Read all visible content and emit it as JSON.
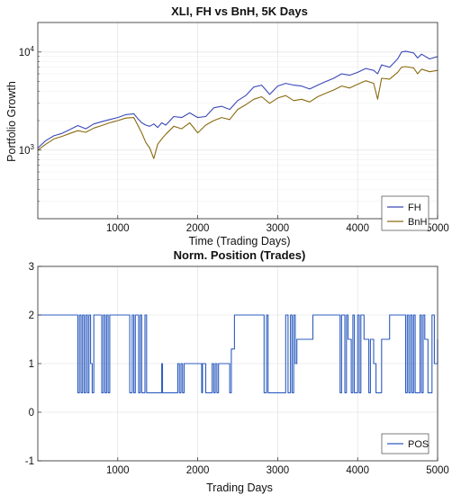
{
  "chart_data": [
    {
      "type": "line",
      "title": "XLI, FH vs BnH, 5K Days",
      "xlabel": "Time (Trading Days)",
      "ylabel": "Portfolio Growth",
      "yscale": "log",
      "xlim": [
        0,
        5000
      ],
      "ylim": [
        200,
        20000
      ],
      "xticks": [
        1000,
        2000,
        3000,
        4000,
        5000
      ],
      "xtick_labels": [
        "1000",
        "2000",
        "3000",
        "4000",
        "5000"
      ],
      "yticks": [
        1000,
        10000
      ],
      "ytick_labels": [
        {
          "base": "10",
          "exp": "3"
        },
        {
          "base": "10",
          "exp": "4"
        }
      ],
      "grid": true,
      "legend": "bottom-right",
      "colors": {
        "FH": "#3a48b8",
        "BnH": "#8a6a10"
      },
      "series": [
        {
          "name": "FH",
          "x": [
            0,
            100,
            200,
            300,
            400,
            500,
            600,
            700,
            800,
            900,
            1000,
            1100,
            1200,
            1250,
            1300,
            1350,
            1400,
            1450,
            1500,
            1550,
            1600,
            1700,
            1800,
            1900,
            2000,
            2100,
            2200,
            2300,
            2400,
            2500,
            2600,
            2700,
            2800,
            2900,
            3000,
            3100,
            3200,
            3300,
            3400,
            3500,
            3600,
            3700,
            3800,
            3900,
            4000,
            4100,
            4200,
            4250,
            4300,
            4400,
            4500,
            4550,
            4600,
            4700,
            4750,
            4800,
            4900,
            5000
          ],
          "y": [
            1050,
            1250,
            1400,
            1480,
            1620,
            1780,
            1650,
            1850,
            1950,
            2050,
            2150,
            2300,
            2350,
            2100,
            1900,
            1800,
            1750,
            1850,
            1700,
            1900,
            1800,
            2200,
            2150,
            2400,
            2150,
            2200,
            2700,
            2800,
            2600,
            3200,
            3600,
            4400,
            4600,
            3700,
            4500,
            4800,
            4600,
            4500,
            4200,
            4600,
            5000,
            5400,
            6000,
            5800,
            6200,
            6800,
            6500,
            6000,
            7400,
            7000,
            8500,
            10000,
            10200,
            9800,
            8700,
            9500,
            8500,
            9000
          ]
        },
        {
          "name": "BnH",
          "x": [
            0,
            100,
            200,
            300,
            400,
            500,
            600,
            700,
            800,
            900,
            1000,
            1100,
            1200,
            1250,
            1300,
            1350,
            1400,
            1450,
            1500,
            1550,
            1600,
            1700,
            1800,
            1900,
            2000,
            2100,
            2200,
            2300,
            2400,
            2500,
            2600,
            2700,
            2800,
            2900,
            3000,
            3100,
            3200,
            3300,
            3400,
            3500,
            3600,
            3700,
            3800,
            3900,
            4000,
            4100,
            4200,
            4250,
            4300,
            4400,
            4500,
            4550,
            4600,
            4700,
            4750,
            4800,
            4900,
            5000
          ],
          "y": [
            1000,
            1150,
            1300,
            1380,
            1480,
            1580,
            1520,
            1680,
            1780,
            1900,
            2000,
            2120,
            2150,
            1800,
            1500,
            1200,
            1050,
            820,
            1150,
            1300,
            1450,
            1750,
            1650,
            1900,
            1500,
            1800,
            2000,
            2150,
            2050,
            2600,
            2900,
            3300,
            3500,
            3000,
            3400,
            3600,
            3200,
            3300,
            3100,
            3500,
            3800,
            4100,
            4500,
            4300,
            4700,
            5100,
            4800,
            3300,
            5400,
            5300,
            6200,
            7000,
            7100,
            6900,
            6000,
            6700,
            6300,
            6500
          ]
        }
      ]
    },
    {
      "type": "line",
      "title": "Norm. Position (Trades)",
      "xlabel": "Trading Days",
      "xlim": [
        0,
        5000
      ],
      "ylim": [
        -1,
        3
      ],
      "xticks": [
        1000,
        2000,
        3000,
        4000,
        5000
      ],
      "xtick_labels": [
        "1000",
        "2000",
        "3000",
        "4000",
        "5000"
      ],
      "yticks": [
        -1,
        0,
        1,
        2,
        3
      ],
      "ytick_labels": [
        "-1",
        "0",
        "1",
        "2",
        "3"
      ],
      "grid": true,
      "legend": "bottom-right",
      "colors": {
        "POS": "#2d5cc0"
      },
      "series": [
        {
          "name": "POS",
          "x": [
            0,
            500,
            520,
            540,
            560,
            580,
            600,
            620,
            640,
            660,
            680,
            700,
            720,
            800,
            820,
            840,
            860,
            880,
            900,
            1150,
            1180,
            1200,
            1220,
            1260,
            1280,
            1300,
            1340,
            1360,
            1550,
            1560,
            1750,
            1770,
            1790,
            1810,
            1830,
            1850,
            2050,
            2060,
            2100,
            2180,
            2200,
            2220,
            2240,
            2260,
            2300,
            2400,
            2420,
            2460,
            2800,
            2830,
            2860,
            2880,
            3100,
            3130,
            3160,
            3180,
            3200,
            3220,
            3240,
            3400,
            3440,
            3750,
            3780,
            3800,
            3840,
            3860,
            3880,
            3920,
            3940,
            3960,
            4000,
            4020,
            4040,
            4080,
            4120,
            4140,
            4160,
            4200,
            4230,
            4300,
            4400,
            4420,
            4600,
            4620,
            4640,
            4660,
            4680,
            4700,
            4720,
            4780,
            4800,
            4820,
            4840,
            4880,
            4930,
            4960,
            5000
          ],
          "y": [
            2,
            0.4,
            2,
            0.4,
            2,
            0.4,
            2,
            0.4,
            2,
            1,
            0.4,
            2,
            2,
            0.4,
            2,
            0.4,
            2,
            0.4,
            2,
            0.4,
            2,
            0.4,
            2,
            0.4,
            2,
            0.4,
            2,
            0.4,
            1,
            0.4,
            1,
            0.4,
            1,
            0.4,
            1,
            1,
            0.4,
            1,
            0.4,
            1,
            0.4,
            1,
            0.4,
            1,
            1,
            0.4,
            1.3,
            2,
            2,
            0.4,
            2,
            0.4,
            2,
            0.4,
            2,
            0.4,
            2,
            1,
            1.5,
            1.5,
            2,
            2,
            0.4,
            2,
            0.4,
            2,
            1.5,
            0.4,
            2,
            0.4,
            2,
            0.4,
            2,
            1.5,
            1.5,
            0.4,
            1.5,
            1,
            0.4,
            1.5,
            2,
            2,
            0.4,
            2,
            0.4,
            2,
            0.4,
            2,
            0.4,
            2,
            0.4,
            2,
            1.5,
            0.4,
            2,
            1,
            1.5
          ]
        }
      ]
    }
  ]
}
